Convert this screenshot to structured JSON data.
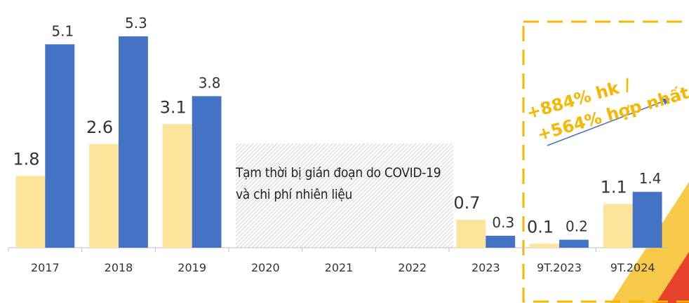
{
  "chart_data": {
    "type": "bar",
    "categories": [
      "2017",
      "2018",
      "2019",
      "2020",
      "2021",
      "2022",
      "2023",
      "9T.2023",
      "9T.2024"
    ],
    "series": [
      {
        "color": "#fde49b",
        "values": [
          1.8,
          2.6,
          3.1,
          null,
          null,
          null,
          0.7,
          0.1,
          1.1
        ]
      },
      {
        "color": "#4472c4",
        "values": [
          5.1,
          5.3,
          3.8,
          null,
          null,
          null,
          0.3,
          0.2,
          1.4
        ]
      }
    ],
    "ylim": [
      0,
      6
    ],
    "annotations": [
      "Tạm thời bị gián đoạn do COVID-19 và chi phí nhiên liệu",
      "+884% hk /",
      "+564% hợp nhất"
    ],
    "annotation_color": "#f5b800"
  }
}
